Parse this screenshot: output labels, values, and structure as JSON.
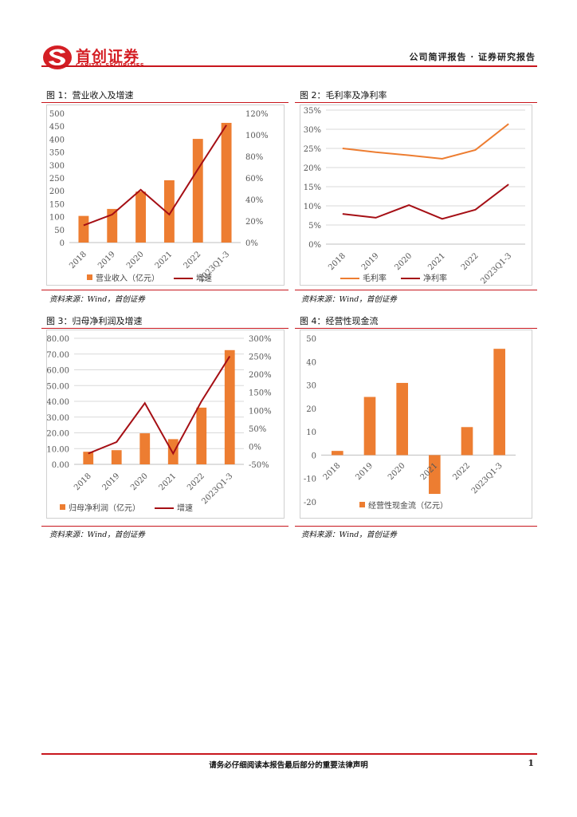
{
  "header": {
    "logo_cn": "首创证券",
    "logo_en": "CAPITAL SECURITIES",
    "report_type": "公司简评报告 · 证券研究报告"
  },
  "figures": [
    {
      "title": "图 1：营业收入及增速",
      "source": "资料来源：Wind，首创证券"
    },
    {
      "title": "图 2：毛利率及净利率",
      "source": "资料来源：Wind，首创证券"
    },
    {
      "title": "图 3：归母净利润及增速",
      "source": "资料来源：Wind，首创证券"
    },
    {
      "title": "图 4：经营性现金流",
      "source": "资料来源：Wind，首创证券"
    }
  ],
  "chart_data": [
    {
      "type": "bar",
      "categories": [
        "2018",
        "2019",
        "2020",
        "2021",
        "2022",
        "2023Q1-3"
      ],
      "series": [
        {
          "name": "营业收入（亿元）",
          "type": "bar",
          "axis": "left",
          "values": [
            103,
            130,
            197,
            241,
            401,
            463
          ],
          "color": "#ed7d31"
        },
        {
          "name": "增速",
          "type": "line",
          "axis": "right",
          "values": [
            16,
            26,
            49,
            26,
            68,
            109
          ],
          "color": "#a50f15"
        }
      ],
      "y_left": {
        "min": 0,
        "max": 500,
        "step": 50,
        "ticks": [
          "0",
          "50",
          "100",
          "150",
          "200",
          "250",
          "300",
          "350",
          "400",
          "450",
          "500"
        ]
      },
      "y_right": {
        "min": 0,
        "max": 120,
        "step": 20,
        "ticks": [
          "0%",
          "20%",
          "40%",
          "60%",
          "80%",
          "100%",
          "120%"
        ]
      }
    },
    {
      "type": "line",
      "categories": [
        "2018",
        "2019",
        "2020",
        "2021",
        "2022",
        "2023Q1-3"
      ],
      "series": [
        {
          "name": "毛利率",
          "values": [
            25.0,
            24.0,
            23.2,
            22.3,
            24.6,
            31.4
          ],
          "color": "#ed7d31"
        },
        {
          "name": "净利率",
          "values": [
            7.9,
            6.9,
            10.2,
            6.6,
            9.0,
            15.6
          ],
          "color": "#a50f15"
        }
      ],
      "y": {
        "min": 0,
        "max": 35,
        "step": 5,
        "ticks": [
          "0%",
          "5%",
          "10%",
          "15%",
          "20%",
          "25%",
          "30%",
          "35%"
        ]
      }
    },
    {
      "type": "bar",
      "categories": [
        "2018",
        "2019",
        "2020",
        "2021",
        "2022",
        "2023Q1-3"
      ],
      "series": [
        {
          "name": "归母净利润（亿元）",
          "type": "bar",
          "axis": "left",
          "values": [
            8.0,
            9.0,
            19.7,
            16.0,
            36.0,
            72.5
          ],
          "color": "#ed7d31"
        },
        {
          "name": "增速",
          "type": "line",
          "axis": "right",
          "values": [
            -20,
            12,
            120,
            -20,
            125,
            250
          ],
          "color": "#a50f15"
        }
      ],
      "y_left": {
        "min": 0,
        "max": 80,
        "step": 10,
        "ticks": [
          "0.00",
          "10.00",
          "20.00",
          "30.00",
          "40.00",
          "50.00",
          "60.00",
          "70.00",
          "80.00"
        ]
      },
      "y_right": {
        "min": -50,
        "max": 300,
        "step": 50,
        "ticks": [
          "-50%",
          "0%",
          "50%",
          "100%",
          "150%",
          "200%",
          "250%",
          "300%"
        ]
      }
    },
    {
      "type": "bar",
      "categories": [
        "2018",
        "2019",
        "2020",
        "2021",
        "2022",
        "2023Q1-3"
      ],
      "series": [
        {
          "name": "经营性现金流（亿元）",
          "values": [
            1.8,
            24.9,
            30.9,
            -16.6,
            12.0,
            45.5
          ],
          "color": "#ed7d31"
        }
      ],
      "y": {
        "min": -20,
        "max": 50,
        "step": 10,
        "ticks": [
          "-20",
          "-10",
          "0",
          "10",
          "20",
          "30",
          "40",
          "50"
        ]
      }
    }
  ],
  "footer": {
    "disclaimer": "请务必仔细阅读本报告最后部分的重要法律声明",
    "page": "1"
  }
}
